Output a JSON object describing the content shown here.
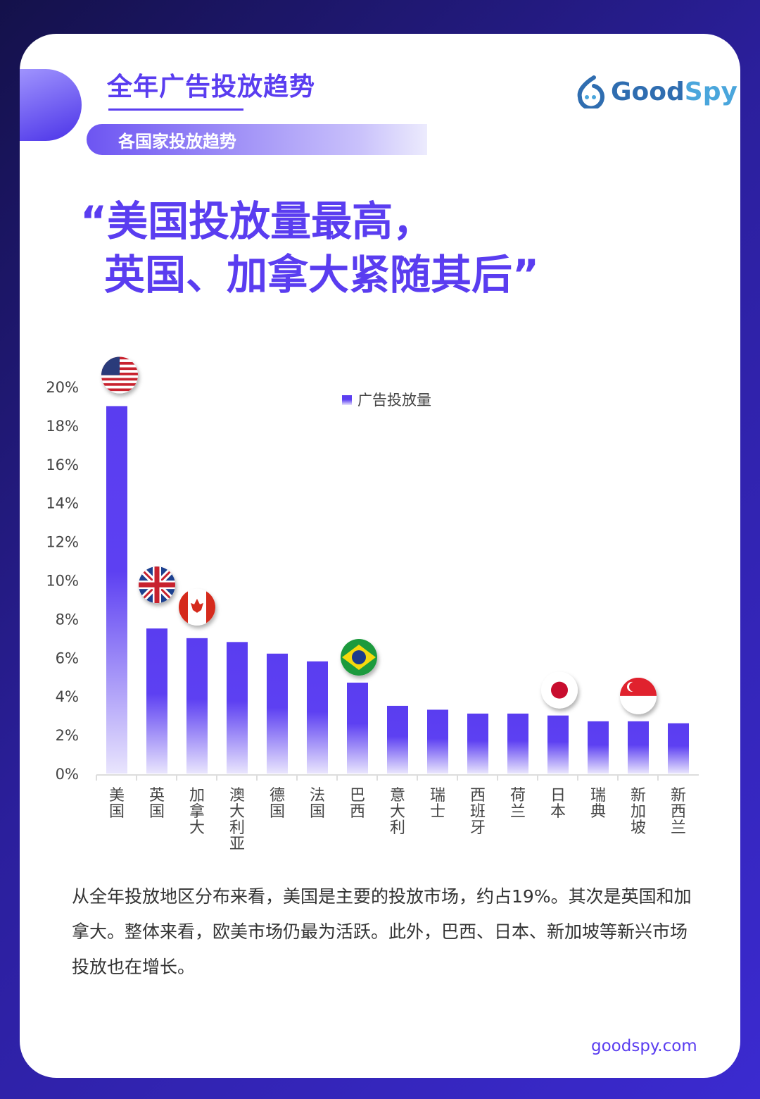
{
  "header": {
    "title": "全年广告投放趋势",
    "subtitle": "各国家投放趋势",
    "logo_text": "GoodSpy"
  },
  "headline": {
    "line1": "“美国投放量最高，",
    "line2": "英国、加拿大紧随其后”"
  },
  "chart_data": {
    "type": "bar",
    "legend": "广告投放量",
    "legend_position": "top",
    "categories": [
      "美国",
      "英国",
      "加拿大",
      "澳大利亚",
      "德国",
      "法国",
      "巴西",
      "意大利",
      "瑞士",
      "西班牙",
      "荷兰",
      "日本",
      "瑞典",
      "新加坡",
      "新西兰"
    ],
    "series": [
      {
        "name": "广告投放量",
        "values": [
          19.0,
          7.5,
          7.0,
          6.8,
          6.2,
          5.8,
          4.7,
          3.5,
          3.3,
          3.1,
          3.1,
          3.0,
          2.7,
          2.7,
          2.6
        ]
      }
    ],
    "ylim": [
      0,
      20
    ],
    "yticks": [
      "0%",
      "2%",
      "4%",
      "6%",
      "8%",
      "10%",
      "12%",
      "14%",
      "16%",
      "18%",
      "20%"
    ],
    "grid": false,
    "bar_color": "#5a3df0",
    "flags": {
      "美国": "us-flag",
      "英国": "uk-flag",
      "加拿大": "canada-flag",
      "巴西": "brazil-flag",
      "日本": "japan-flag",
      "新加坡": "singapore-flag"
    }
  },
  "description": "从全年投放地区分布来看，美国是主要的投放市场，约占19%。其次是英国和加拿大。整体来看，欧美市场仍最为活跃。此外，巴西、日本、新加坡等新兴市场投放也在增长。",
  "footer": "goodspy.com",
  "colors": {
    "accent": "#5a3df0",
    "background": "#2a1f8f"
  }
}
